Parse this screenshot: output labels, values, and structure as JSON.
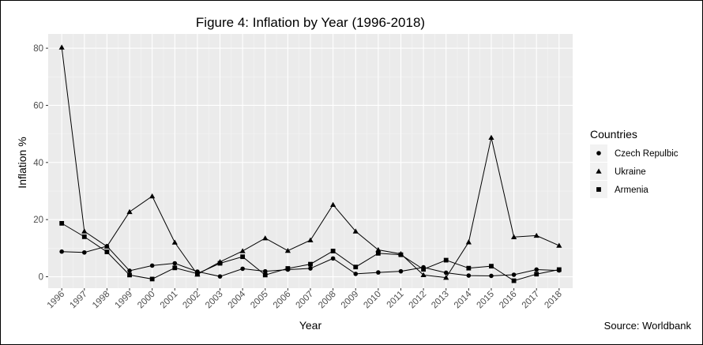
{
  "chart_data": {
    "type": "line",
    "title": "Figure 4: Inflation by Year (1996-2018)",
    "xlabel": "Year",
    "ylabel": "Inflation %",
    "x": [
      1996,
      1997,
      1998,
      1999,
      2000,
      2001,
      2002,
      2003,
      2004,
      2005,
      2006,
      2007,
      2008,
      2009,
      2010,
      2011,
      2012,
      2013,
      2014,
      2015,
      2016,
      2017,
      2018
    ],
    "x_tick_labels": [
      "1996",
      "1997",
      "1998",
      "1999",
      "2000",
      "2001",
      "2002",
      "2003",
      "2004",
      "2005",
      "2006",
      "2007",
      "2008",
      "2009",
      "2010",
      "2011",
      "2012",
      "2013",
      "2014",
      "2015",
      "2016",
      "2017",
      "2018"
    ],
    "y_ticks": [
      0,
      20,
      40,
      60,
      80
    ],
    "y_tick_labels": [
      "0",
      "20",
      "40",
      "60",
      "80"
    ],
    "ylim": [
      -4,
      85
    ],
    "grid": true,
    "legend": {
      "title": "Countries",
      "position": "right"
    },
    "series": [
      {
        "name": "Czech Repulbic",
        "marker": "circle",
        "values": [
          8.8,
          8.5,
          10.7,
          2.1,
          3.9,
          4.7,
          1.8,
          0.1,
          2.8,
          1.9,
          2.5,
          2.9,
          6.4,
          1.0,
          1.5,
          1.9,
          3.3,
          1.4,
          0.4,
          0.3,
          0.7,
          2.5,
          2.2
        ]
      },
      {
        "name": "Ukraine",
        "marker": "triangle",
        "values": [
          80.3,
          15.9,
          10.6,
          22.7,
          28.2,
          12.0,
          0.8,
          5.2,
          9.0,
          13.5,
          9.1,
          12.8,
          25.2,
          15.9,
          9.4,
          8.0,
          0.6,
          -0.3,
          12.1,
          48.7,
          13.9,
          14.4,
          10.9
        ]
      },
      {
        "name": "Armenia",
        "marker": "square",
        "values": [
          18.7,
          14.0,
          8.7,
          0.6,
          -0.8,
          3.1,
          1.1,
          4.7,
          7.0,
          0.6,
          2.9,
          4.4,
          9.0,
          3.4,
          8.2,
          7.7,
          2.6,
          5.8,
          3.0,
          3.7,
          -1.4,
          0.9,
          2.5
        ]
      }
    ]
  },
  "source_note": "Source: Worldbank"
}
